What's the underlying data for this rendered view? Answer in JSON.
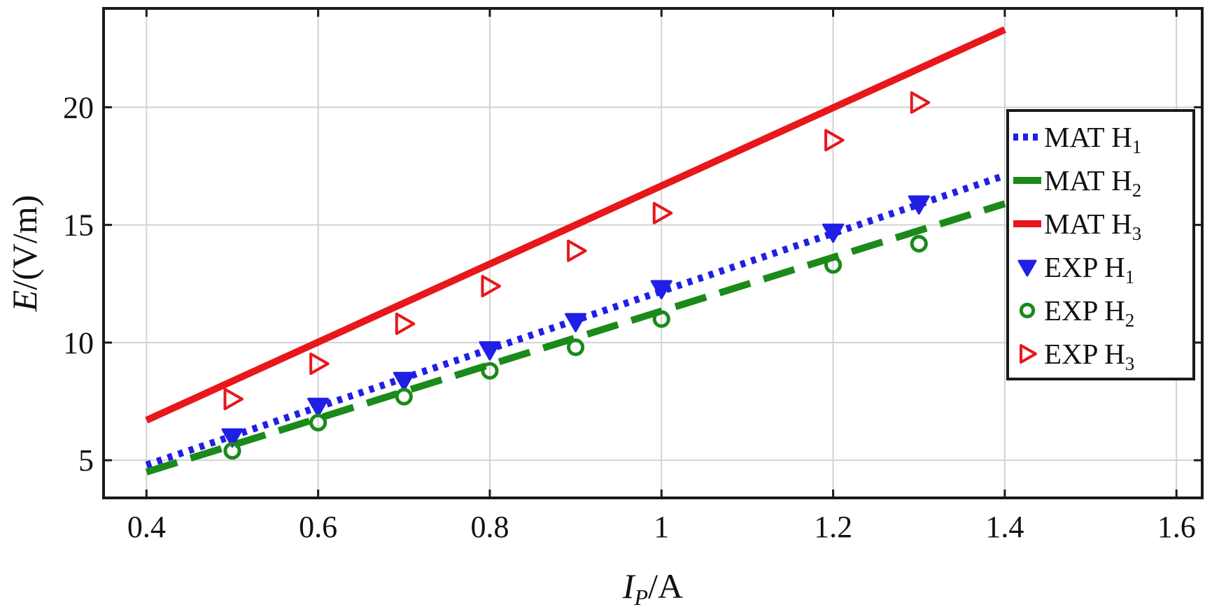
{
  "chart_data": {
    "type": "line",
    "xlabel": {
      "main": "I",
      "sub": "P",
      "unit": "/A"
    },
    "ylabel": {
      "main": "E",
      "unit": "/(V/m)"
    },
    "xlim": [
      0.35,
      1.63
    ],
    "ylim": [
      3.4,
      24.2
    ],
    "xticks": [
      0.4,
      0.6,
      0.8,
      1.0,
      1.2,
      1.4,
      1.6
    ],
    "xtick_labels": [
      "0.4",
      "0.6",
      "0.8",
      "1",
      "1.2",
      "1.4",
      "1.6"
    ],
    "yticks": [
      5,
      10,
      15,
      20
    ],
    "ytick_labels": [
      "5",
      "10",
      "15",
      "20"
    ],
    "grid": true,
    "legend_position": "right",
    "series": [
      {
        "name": "MAT H",
        "sub": "1",
        "kind": "line",
        "style": "dotted",
        "color": "#1f1fe6",
        "x": [
          0.4,
          1.4
        ],
        "values": [
          4.8,
          17.1
        ]
      },
      {
        "name": "MAT H",
        "sub": "2",
        "kind": "line",
        "style": "dashed",
        "color": "#1a8a1a",
        "x": [
          0.4,
          1.4
        ],
        "values": [
          4.5,
          15.9
        ]
      },
      {
        "name": "MAT H",
        "sub": "3",
        "kind": "line",
        "style": "solid",
        "color": "#e8171b",
        "x": [
          0.4,
          1.4
        ],
        "values": [
          6.7,
          23.3
        ]
      },
      {
        "name": "EXP H",
        "sub": "1",
        "kind": "marker",
        "marker": "triangle-down",
        "color": "#1f1fe6",
        "x": [
          0.5,
          0.6,
          0.7,
          0.8,
          0.9,
          1.0,
          1.2,
          1.3
        ],
        "values": [
          6.0,
          7.3,
          8.4,
          9.7,
          10.9,
          12.3,
          14.7,
          15.9
        ]
      },
      {
        "name": "EXP H",
        "sub": "2",
        "kind": "marker",
        "marker": "circle",
        "color": "#1a8a1a",
        "x": [
          0.5,
          0.6,
          0.7,
          0.8,
          0.9,
          1.0,
          1.2,
          1.3
        ],
        "values": [
          5.4,
          6.6,
          7.7,
          8.8,
          9.8,
          11.0,
          13.3,
          14.2
        ]
      },
      {
        "name": "EXP H",
        "sub": "3",
        "kind": "marker",
        "marker": "triangle-right",
        "color": "#e8171b",
        "x": [
          0.5,
          0.6,
          0.7,
          0.8,
          0.9,
          1.0,
          1.2,
          1.3
        ],
        "values": [
          7.6,
          9.1,
          10.8,
          12.4,
          13.9,
          15.5,
          18.6,
          20.2
        ]
      }
    ]
  }
}
